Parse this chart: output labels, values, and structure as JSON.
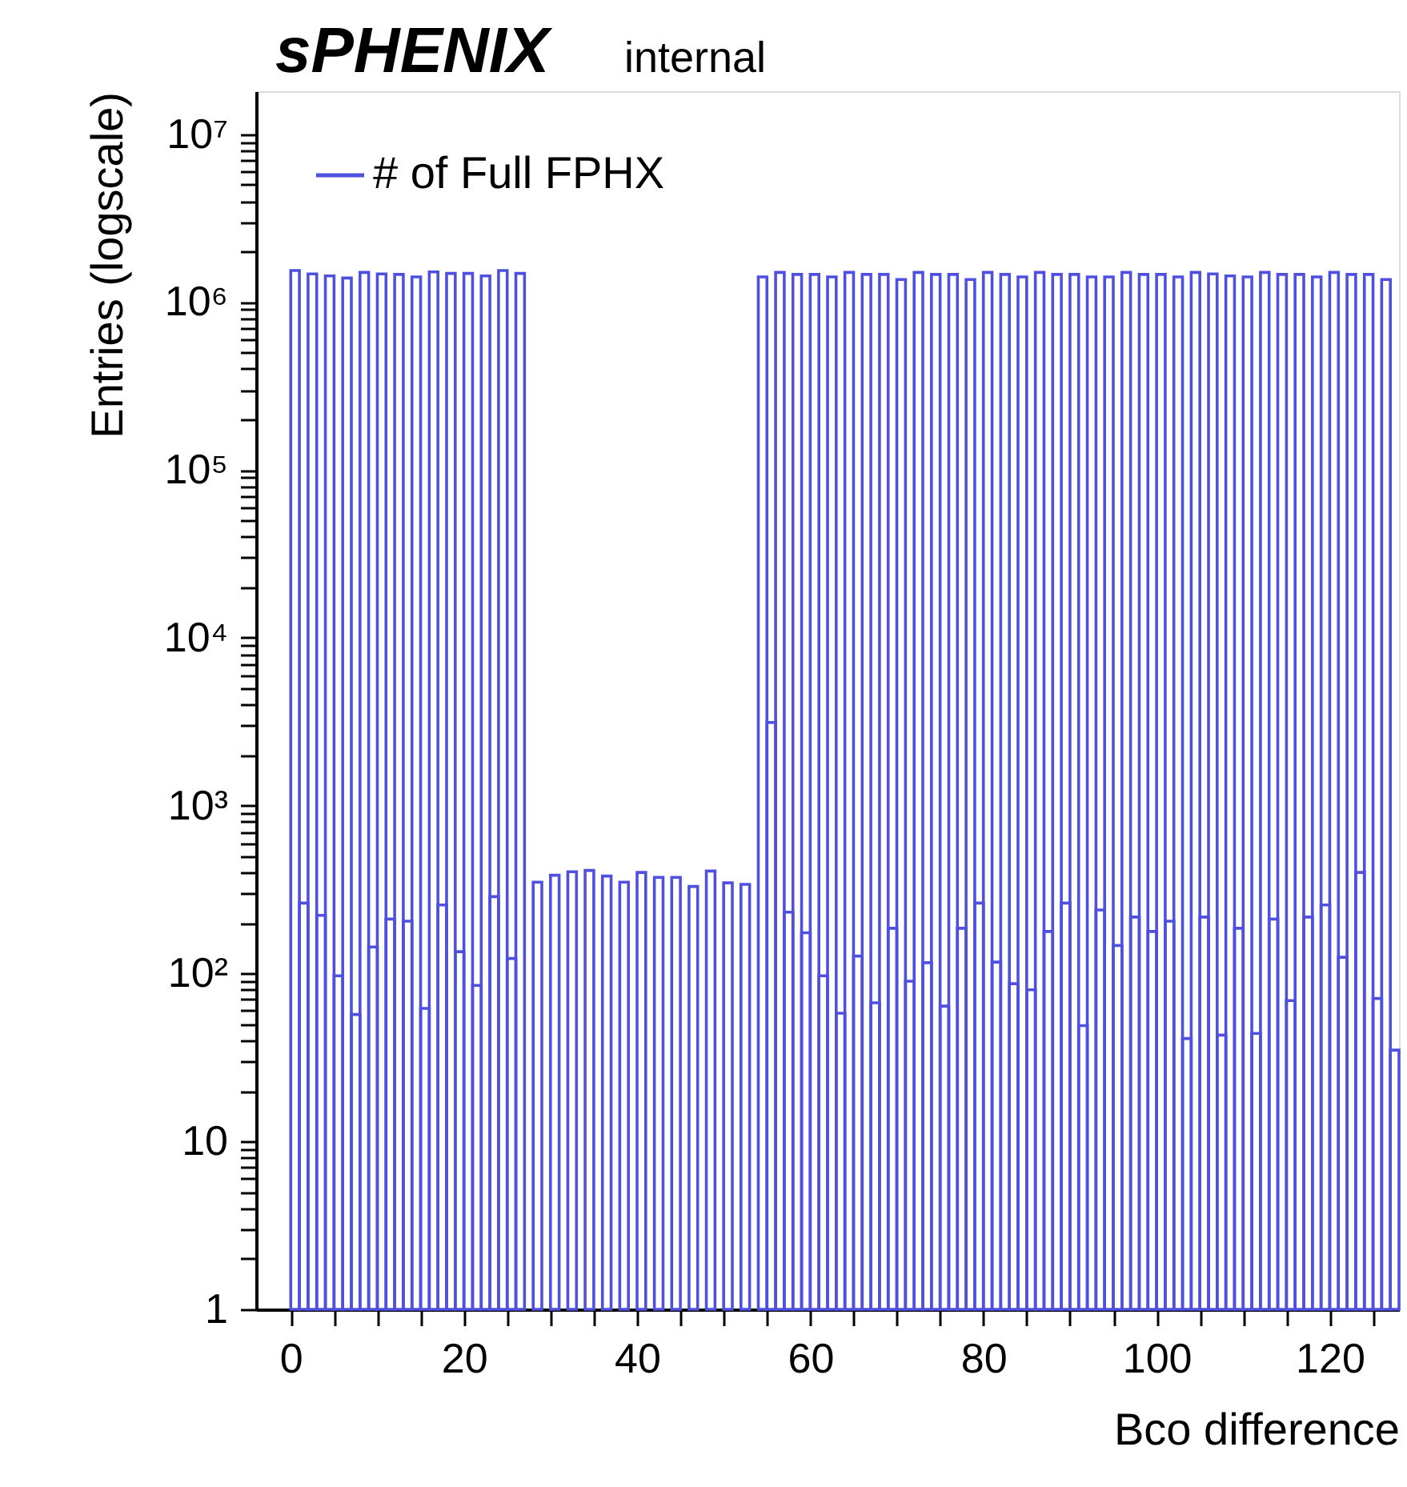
{
  "chart_data": {
    "type": "histogram",
    "title": "sPHENIX",
    "subtitle": "internal",
    "xlabel": "Bco difference",
    "ylabel": "Entries (logscale)",
    "bins": [
      0,
      1,
      2,
      3,
      4,
      5,
      6,
      7,
      8,
      9,
      10,
      11,
      12,
      13,
      14,
      15,
      16,
      17,
      18,
      19,
      20,
      21,
      22,
      23,
      24,
      25,
      26,
      27,
      28,
      29,
      30,
      31,
      32,
      33,
      34,
      35,
      36,
      37,
      38,
      39,
      40,
      41,
      42,
      43,
      44,
      45,
      46,
      47,
      48,
      49,
      50,
      51,
      52,
      53,
      54,
      55,
      56,
      57,
      58,
      59,
      60,
      61,
      62,
      63,
      64,
      65,
      66,
      67,
      68,
      69,
      70,
      71,
      72,
      73,
      74,
      75,
      76,
      77,
      78,
      79,
      80,
      81,
      82,
      83,
      84,
      85,
      86,
      87,
      88,
      89,
      90,
      91,
      92,
      93,
      94,
      95,
      96,
      97,
      98,
      99,
      100,
      101,
      102,
      103,
      104,
      105,
      106,
      107,
      108,
      109,
      110,
      111,
      112,
      113,
      114,
      115,
      116,
      117,
      118,
      119,
      120,
      121,
      122,
      123,
      124,
      125,
      126,
      127,
      128
    ],
    "series": [
      {
        "name": "# of Full FPHX",
        "color": "#5050e0",
        "values": [
          1540000,
          263,
          1470000,
          222,
          1430000,
          97,
          1390000,
          57,
          1500000,
          144,
          1470000,
          211,
          1460000,
          205,
          1410000,
          62,
          1510000,
          256,
          1480000,
          135,
          1480000,
          85,
          1430000,
          287,
          1540000,
          123,
          1480000,
          null,
          350,
          null,
          385,
          null,
          404,
          null,
          411,
          null,
          381,
          null,
          350,
          null,
          400,
          null,
          374,
          null,
          374,
          null,
          330,
          null,
          408,
          null,
          347,
          null,
          340,
          null,
          1410000,
          3130,
          1500000,
          232,
          1460000,
          175,
          1460000,
          97,
          1410000,
          58,
          1500000,
          127,
          1460000,
          67,
          1460000,
          186,
          1360000,
          90,
          1500000,
          116,
          1460000,
          64,
          1460000,
          186,
          1360000,
          263,
          1500000,
          117,
          1460000,
          87,
          1410000,
          80,
          1500000,
          178,
          1460000,
          263,
          1460000,
          49,
          1410000,
          239,
          1410000,
          147,
          1500000,
          217,
          1460000,
          178,
          1460000,
          205,
          1410000,
          41,
          1500000,
          217,
          1470000,
          43,
          1430000,
          186,
          1410000,
          44,
          1500000,
          211,
          1460000,
          69,
          1460000,
          217,
          1410000,
          256,
          1500000,
          125,
          1460000,
          400,
          1460000,
          71,
          1360000,
          35
        ]
      }
    ],
    "xlim": [
      -4,
      128
    ],
    "xticks": [
      0,
      {
        "value": 5,
        "label": null
      },
      {
        "value": 10,
        "label": null
      },
      {
        "value": 15,
        "label": null
      },
      20,
      {
        "value": 25,
        "label": null
      },
      {
        "value": 30,
        "label": null
      },
      {
        "value": 35,
        "label": null
      },
      40,
      {
        "value": 45,
        "label": null
      },
      {
        "value": 50,
        "label": null
      },
      {
        "value": 55,
        "label": null
      },
      60,
      {
        "value": 65,
        "label": null
      },
      {
        "value": 70,
        "label": null
      },
      {
        "value": 75,
        "label": null
      },
      80,
      {
        "value": 85,
        "label": null
      },
      {
        "value": 90,
        "label": null
      },
      {
        "value": 95,
        "label": null
      },
      100,
      {
        "value": 105,
        "label": null
      },
      {
        "value": 110,
        "label": null
      },
      {
        "value": 115,
        "label": null
      },
      120,
      {
        "value": 125,
        "label": null
      }
    ],
    "ylim": [
      1,
      18000000
    ],
    "yticks": [
      1,
      {
        "value": 2,
        "label": null
      },
      {
        "value": 3,
        "label": null
      },
      {
        "value": 4,
        "label": null
      },
      {
        "value": 5,
        "label": null
      },
      {
        "value": 6,
        "label": null
      },
      {
        "value": 7,
        "label": null
      },
      {
        "value": 8,
        "label": null
      },
      {
        "value": 9,
        "label": null
      },
      10,
      {
        "value": 20,
        "label": null
      },
      {
        "value": 30,
        "label": null
      },
      {
        "value": 40,
        "label": null
      },
      {
        "value": 50,
        "label": null
      },
      {
        "value": 60,
        "label": null
      },
      {
        "value": 70,
        "label": null
      },
      {
        "value": 80,
        "label": null
      },
      {
        "value": 90,
        "label": null
      },
      {
        "value": 100,
        "label": "10²"
      },
      {
        "value": 200,
        "label": null
      },
      {
        "value": 300,
        "label": null
      },
      {
        "value": 400,
        "label": null
      },
      {
        "value": 500,
        "label": null
      },
      {
        "value": 600,
        "label": null
      },
      {
        "value": 700,
        "label": null
      },
      {
        "value": 800,
        "label": null
      },
      {
        "value": 900,
        "label": null
      },
      {
        "value": 1000,
        "label": "10³"
      },
      {
        "value": 2000,
        "label": null
      },
      {
        "value": 3000,
        "label": null
      },
      {
        "value": 4000,
        "label": null
      },
      {
        "value": 5000,
        "label": null
      },
      {
        "value": 6000,
        "label": null
      },
      {
        "value": 7000,
        "label": null
      },
      {
        "value": 8000,
        "label": null
      },
      {
        "value": 9000,
        "label": null
      },
      {
        "value": 10000,
        "label": "10⁴"
      },
      {
        "value": 20000,
        "label": null
      },
      {
        "value": 30000,
        "label": null
      },
      {
        "value": 40000,
        "label": null
      },
      {
        "value": 50000,
        "label": null
      },
      {
        "value": 60000,
        "label": null
      },
      {
        "value": 70000,
        "label": null
      },
      {
        "value": 80000,
        "label": null
      },
      {
        "value": 90000,
        "label": null
      },
      {
        "value": 100000,
        "label": "10⁵"
      },
      {
        "value": 200000,
        "label": null
      },
      {
        "value": 300000,
        "label": null
      },
      {
        "value": 400000,
        "label": null
      },
      {
        "value": 500000,
        "label": null
      },
      {
        "value": 600000,
        "label": null
      },
      {
        "value": 700000,
        "label": null
      },
      {
        "value": 800000,
        "label": null
      },
      {
        "value": 900000,
        "label": null
      },
      {
        "value": 1000000,
        "label": "10⁶"
      },
      {
        "value": 2000000,
        "label": null
      },
      {
        "value": 3000000,
        "label": null
      },
      {
        "value": 4000000,
        "label": null
      },
      {
        "value": 5000000,
        "label": null
      },
      {
        "value": 6000000,
        "label": null
      },
      {
        "value": 7000000,
        "label": null
      },
      {
        "value": 8000000,
        "label": null
      },
      {
        "value": 9000000,
        "label": null
      },
      {
        "value": 10000000,
        "label": "10⁷"
      }
    ],
    "log": "y",
    "grid": false,
    "legend": "top left"
  }
}
